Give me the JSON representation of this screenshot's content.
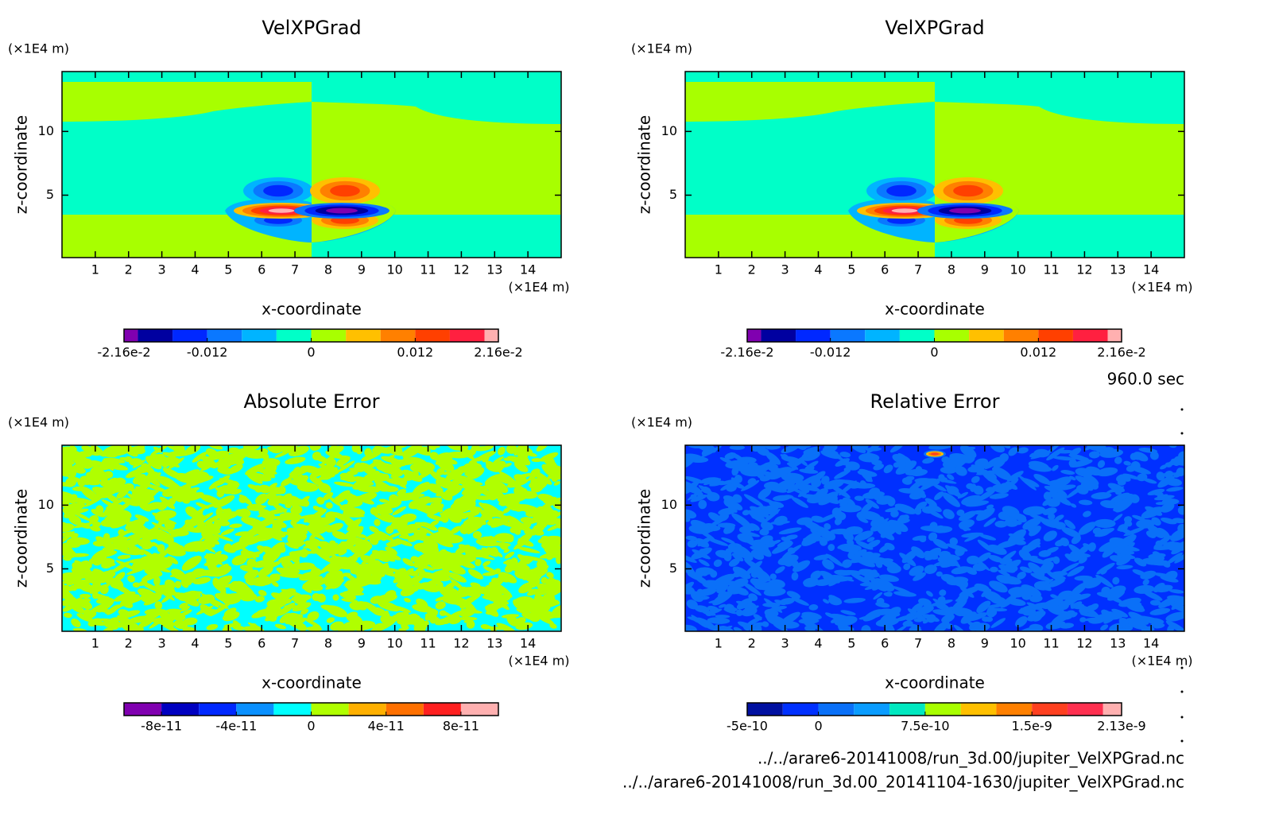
{
  "chart_data": [
    {
      "type": "contour",
      "title": "VelXPGrad",
      "x_label": "x-coordinate",
      "y_label": "z-coordinate",
      "x_unit": "(×1E4 m)",
      "y_unit": "(×1E4 m)",
      "xlim": [
        0,
        15
      ],
      "ylim": [
        0.1,
        14.7
      ],
      "xticks": [
        1,
        2,
        3,
        4,
        5,
        6,
        7,
        8,
        9,
        10,
        11,
        12,
        13,
        14
      ],
      "yticks": [
        5,
        10
      ],
      "colorbar": {
        "clim": [
          -0.0216,
          0.0216
        ],
        "levels": [
          -0.02,
          -0.016,
          -0.012,
          -0.008,
          -0.004,
          0,
          0.004,
          0.008,
          0.012,
          0.016,
          0.02
        ],
        "colors": [
          "#8000b0",
          "#0000a0",
          "#0028ff",
          "#0a78ff",
          "#00b4ff",
          "#00ffc8",
          "#a8ff00",
          "#ffc000",
          "#ff8000",
          "#ff4000",
          "#ff2040",
          "#ffb0b0"
        ],
        "ticks": [
          {
            "value": -0.0216,
            "label": "-2.16e-2"
          },
          -0.012,
          0,
          0.012,
          {
            "value": 0.0216,
            "label": "2.16e-2"
          }
        ]
      }
    },
    {
      "type": "contour",
      "title": "VelXPGrad",
      "x_label": "x-coordinate",
      "y_label": "z-coordinate",
      "x_unit": "(×1E4 m)",
      "y_unit": "(×1E4 m)",
      "xlim": [
        0,
        15
      ],
      "ylim": [
        0.1,
        14.7
      ],
      "xticks": [
        1,
        2,
        3,
        4,
        5,
        6,
        7,
        8,
        9,
        10,
        11,
        12,
        13,
        14
      ],
      "yticks": [
        5,
        10
      ],
      "colorbar": {
        "clim": [
          -0.0216,
          0.0216
        ],
        "levels": [
          -0.02,
          -0.016,
          -0.012,
          -0.008,
          -0.004,
          0,
          0.004,
          0.008,
          0.012,
          0.016,
          0.02
        ],
        "colors": [
          "#8000b0",
          "#0000a0",
          "#0028ff",
          "#0a78ff",
          "#00b4ff",
          "#00ffc8",
          "#a8ff00",
          "#ffc000",
          "#ff8000",
          "#ff4000",
          "#ff2040",
          "#ffb0b0"
        ],
        "ticks": [
          {
            "value": -0.0216,
            "label": "-2.16e-2"
          },
          -0.012,
          0,
          0.012,
          {
            "value": 0.0216,
            "label": "2.16e-2"
          }
        ]
      }
    },
    {
      "type": "contour",
      "title": "Absolute Error",
      "x_label": "x-coordinate",
      "y_label": "z-coordinate",
      "x_unit": "(×1E4 m)",
      "y_unit": "(×1E4 m)",
      "xlim": [
        0,
        15
      ],
      "ylim": [
        0.1,
        14.7
      ],
      "xticks": [
        1,
        2,
        3,
        4,
        5,
        6,
        7,
        8,
        9,
        10,
        11,
        12,
        13,
        14
      ],
      "yticks": [
        5,
        10
      ],
      "colorbar": {
        "clim": [
          -1e-10,
          1e-10
        ],
        "levels": [
          -8e-11,
          -6e-11,
          -4e-11,
          -2e-11,
          0,
          2e-11,
          4e-11,
          6e-11,
          8e-11
        ],
        "colors": [
          "#8000b0",
          "#0000c0",
          "#0028ff",
          "#0a90ff",
          "#00ffff",
          "#b0ff00",
          "#ffb000",
          "#ff7000",
          "#ff2020",
          "#ffb0b0"
        ],
        "ticks": [
          -8e-11,
          -4e-11,
          0,
          4e-11,
          8e-11
        ]
      }
    },
    {
      "type": "contour",
      "title": "Relative Error",
      "x_label": "x-coordinate",
      "y_label": "z-coordinate",
      "x_unit": "(×1E4 m)",
      "y_unit": "(×1E4 m)",
      "xlim": [
        0,
        15
      ],
      "ylim": [
        0.1,
        14.7
      ],
      "xticks": [
        1,
        2,
        3,
        4,
        5,
        6,
        7,
        8,
        9,
        10,
        11,
        12,
        13,
        14
      ],
      "yticks": [
        5,
        10
      ],
      "colorbar": {
        "clim": [
          -5e-10,
          2.13e-09
        ],
        "levels": [
          -2.5e-10,
          0,
          2.5e-10,
          5e-10,
          7.5e-10,
          1e-09,
          1.25e-09,
          1.5e-09,
          1.75e-09,
          2e-09
        ],
        "colors": [
          "#0010a0",
          "#0030ff",
          "#0a70f8",
          "#0a9cff",
          "#00e8c0",
          "#a8ff00",
          "#ffc000",
          "#ff8000",
          "#ff4020",
          "#ff3050",
          "#ffb0b0"
        ],
        "ticks": [
          -5e-10,
          0,
          7.5e-10,
          1.5e-09,
          2.13e-09
        ]
      }
    }
  ],
  "annotations": {
    "time": "960.0 sec",
    "files": [
      "../../arare6-20141008/run_3d.00/jupiter_VelXPGrad.nc",
      "../../arare6-20141008/run_3d.00_20141104-1630/jupiter_VelXPGrad.nc"
    ]
  }
}
